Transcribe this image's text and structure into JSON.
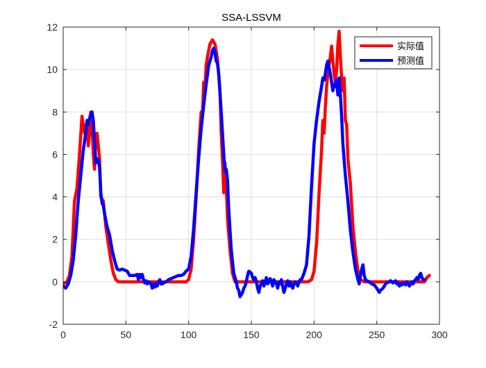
{
  "chart_data": {
    "type": "line",
    "title": "SSA-LSSVM",
    "xlabel": "",
    "ylabel": "",
    "xlim": [
      0,
      300
    ],
    "ylim": [
      -2,
      12
    ],
    "xticks": [
      0,
      50,
      100,
      150,
      200,
      250,
      300
    ],
    "yticks": [
      -2,
      0,
      2,
      4,
      6,
      8,
      10,
      12
    ],
    "grid": true,
    "legend_position": "top-right",
    "series": [
      {
        "name": "实际值",
        "color": "#ff0000",
        "points": [
          [
            0,
            -0.1
          ],
          [
            3,
            0
          ],
          [
            5,
            0.3
          ],
          [
            7,
            1.2
          ],
          [
            9,
            3.8
          ],
          [
            11,
            4.4
          ],
          [
            13,
            6.0
          ],
          [
            15,
            7.8
          ],
          [
            17,
            7.0
          ],
          [
            19,
            7.5
          ],
          [
            20,
            6.4
          ],
          [
            21,
            7.0
          ],
          [
            22,
            8.0
          ],
          [
            23,
            7.4
          ],
          [
            24,
            6.0
          ],
          [
            25,
            5.3
          ],
          [
            26,
            6.8
          ],
          [
            27,
            7.0
          ],
          [
            28,
            6.4
          ],
          [
            29,
            5.8
          ],
          [
            30,
            4.0
          ],
          [
            32,
            3.8
          ],
          [
            34,
            2.6
          ],
          [
            36,
            1.8
          ],
          [
            38,
            1.0
          ],
          [
            40,
            0.4
          ],
          [
            42,
            0.1
          ],
          [
            44,
            0
          ],
          [
            50,
            0
          ],
          [
            60,
            0
          ],
          [
            70,
            0
          ],
          [
            80,
            0
          ],
          [
            90,
            0
          ],
          [
            95,
            0
          ],
          [
            98,
            0
          ],
          [
            100,
            0.1
          ],
          [
            102,
            0.6
          ],
          [
            104,
            2.0
          ],
          [
            106,
            4.0
          ],
          [
            108,
            6.2
          ],
          [
            110,
            8.0
          ],
          [
            111,
            7.8
          ],
          [
            112,
            9.4
          ],
          [
            113,
            9.0
          ],
          [
            114,
            10.2
          ],
          [
            115,
            10.6
          ],
          [
            117,
            11.2
          ],
          [
            119,
            11.4
          ],
          [
            121,
            11.2
          ],
          [
            123,
            10.5
          ],
          [
            125,
            9.0
          ],
          [
            126,
            7.0
          ],
          [
            127,
            5.8
          ],
          [
            128,
            4.2
          ],
          [
            129,
            5.6
          ],
          [
            130,
            4.6
          ],
          [
            131,
            3.0
          ],
          [
            133,
            1.5
          ],
          [
            135,
            0.4
          ],
          [
            137,
            0
          ],
          [
            140,
            0
          ],
          [
            150,
            0
          ],
          [
            160,
            0
          ],
          [
            170,
            0
          ],
          [
            180,
            0
          ],
          [
            190,
            0
          ],
          [
            195,
            0
          ],
          [
            198,
            0.1
          ],
          [
            200,
            0.5
          ],
          [
            202,
            1.8
          ],
          [
            204,
            4.2
          ],
          [
            206,
            6.2
          ],
          [
            207,
            7.6
          ],
          [
            208,
            7.0
          ],
          [
            209,
            8.2
          ],
          [
            210,
            9.2
          ],
          [
            211,
            9.8
          ],
          [
            212,
            10.2
          ],
          [
            213,
            10.6
          ],
          [
            214,
            11.1
          ],
          [
            215,
            10.4
          ],
          [
            216,
            9.8
          ],
          [
            217,
            9.4
          ],
          [
            218,
            10.0
          ],
          [
            219,
            11.2
          ],
          [
            220,
            11.8
          ],
          [
            221,
            10.6
          ],
          [
            222,
            9.6
          ],
          [
            223,
            9.0
          ],
          [
            224,
            9.6
          ],
          [
            225,
            7.6
          ],
          [
            226,
            7.4
          ],
          [
            227,
            5.8
          ],
          [
            229,
            4.6
          ],
          [
            231,
            2.6
          ],
          [
            233,
            1.4
          ],
          [
            235,
            0.5
          ],
          [
            237,
            0.1
          ],
          [
            240,
            0
          ],
          [
            250,
            0
          ],
          [
            260,
            0
          ],
          [
            270,
            0
          ],
          [
            280,
            0
          ],
          [
            288,
            0
          ],
          [
            290,
            0.2
          ],
          [
            292,
            0.3
          ]
        ]
      },
      {
        "name": "预测值",
        "color": "#0000ff",
        "points": [
          [
            0,
            -0.2
          ],
          [
            2,
            -0.3
          ],
          [
            4,
            -0.1
          ],
          [
            6,
            0.3
          ],
          [
            8,
            1.0
          ],
          [
            10,
            2.2
          ],
          [
            12,
            3.8
          ],
          [
            14,
            5.0
          ],
          [
            16,
            6.2
          ],
          [
            18,
            7.0
          ],
          [
            19,
            7.6
          ],
          [
            20,
            7.4
          ],
          [
            21,
            7.7
          ],
          [
            22,
            7.9
          ],
          [
            23,
            8.0
          ],
          [
            24,
            7.6
          ],
          [
            25,
            6.6
          ],
          [
            26,
            5.6
          ],
          [
            27,
            5.8
          ],
          [
            28,
            5.7
          ],
          [
            29,
            5.4
          ],
          [
            30,
            4.2
          ],
          [
            31,
            3.7
          ],
          [
            32,
            3.6
          ],
          [
            33,
            3.2
          ],
          [
            35,
            2.6
          ],
          [
            37,
            2.2
          ],
          [
            39,
            1.5
          ],
          [
            41,
            1.0
          ],
          [
            43,
            0.6
          ],
          [
            45,
            0.55
          ],
          [
            47,
            0.6
          ],
          [
            49,
            0.55
          ],
          [
            51,
            0.5
          ],
          [
            53,
            0.3
          ],
          [
            55,
            0.3
          ],
          [
            57,
            0.3
          ],
          [
            59,
            0.35
          ],
          [
            60,
            0.1
          ],
          [
            61,
            0.35
          ],
          [
            62,
            0.2
          ],
          [
            63,
            0.35
          ],
          [
            64,
            0.1
          ],
          [
            65,
            -0.05
          ],
          [
            66,
            0.05
          ],
          [
            67,
            -0.1
          ],
          [
            68,
            0
          ],
          [
            70,
            -0.1
          ],
          [
            71,
            -0.3
          ],
          [
            72,
            -0.1
          ],
          [
            73,
            -0.25
          ],
          [
            74,
            -0.1
          ],
          [
            75,
            -0.2
          ],
          [
            76,
            0
          ],
          [
            77,
            0.1
          ],
          [
            78,
            -0.1
          ],
          [
            79,
            -0.1
          ],
          [
            80,
            -0.05
          ],
          [
            82,
            0
          ],
          [
            84,
            0.1
          ],
          [
            86,
            0.15
          ],
          [
            88,
            0.2
          ],
          [
            90,
            0.25
          ],
          [
            92,
            0.3
          ],
          [
            94,
            0.3
          ],
          [
            96,
            0.35
          ],
          [
            98,
            0.5
          ],
          [
            100,
            0.6
          ],
          [
            102,
            1.2
          ],
          [
            104,
            2.5
          ],
          [
            106,
            4.2
          ],
          [
            108,
            5.8
          ],
          [
            110,
            7.2
          ],
          [
            112,
            8.3
          ],
          [
            114,
            9.3
          ],
          [
            116,
            10.2
          ],
          [
            118,
            10.6
          ],
          [
            119,
            10.9
          ],
          [
            120,
            11.0
          ],
          [
            121,
            10.8
          ],
          [
            122,
            10.4
          ],
          [
            123,
            10.3
          ],
          [
            124,
            9.8
          ],
          [
            126,
            8.0
          ],
          [
            127,
            7.0
          ],
          [
            128,
            6.0
          ],
          [
            129,
            5.2
          ],
          [
            130,
            5.3
          ],
          [
            131,
            4.8
          ],
          [
            132,
            3.4
          ],
          [
            134,
            1.5
          ],
          [
            136,
            0.4
          ],
          [
            137,
            0.2
          ],
          [
            138,
            0.0
          ],
          [
            139,
            -0.3
          ],
          [
            140,
            -0.4
          ],
          [
            141,
            -0.7
          ],
          [
            142,
            -0.6
          ],
          [
            143,
            -0.5
          ],
          [
            144,
            -0.3
          ],
          [
            145,
            -0.2
          ],
          [
            146,
            0
          ],
          [
            147,
            0.3
          ],
          [
            148,
            0.5
          ],
          [
            149,
            0.45
          ],
          [
            150,
            0.4
          ],
          [
            151,
            0.2
          ],
          [
            152,
            0.1
          ],
          [
            153,
            0.2
          ],
          [
            154,
            0
          ],
          [
            155,
            -0.3
          ],
          [
            156,
            -0.5
          ],
          [
            157,
            -0.2
          ],
          [
            158,
            -0.1
          ],
          [
            159,
            0.05
          ],
          [
            160,
            -0.2
          ],
          [
            161,
            0
          ],
          [
            162,
            0.2
          ],
          [
            163,
            -0.1
          ],
          [
            164,
            0
          ],
          [
            165,
            0.15
          ],
          [
            166,
            0
          ],
          [
            167,
            -0.2
          ],
          [
            168,
            0.1
          ],
          [
            169,
            0
          ],
          [
            170,
            -0.1
          ],
          [
            171,
            -0.3
          ],
          [
            172,
            0
          ],
          [
            173,
            -0.1
          ],
          [
            174,
            0.1
          ],
          [
            175,
            -0.2
          ],
          [
            176,
            -0.5
          ],
          [
            177,
            -0.3
          ],
          [
            178,
            -0.1
          ],
          [
            179,
            0.05
          ],
          [
            180,
            -0.2
          ],
          [
            181,
            0
          ],
          [
            182,
            -0.2
          ],
          [
            183,
            -0.3
          ],
          [
            184,
            -0.1
          ],
          [
            185,
            0
          ],
          [
            186,
            -0.05
          ],
          [
            187,
            -0.2
          ],
          [
            188,
            0
          ],
          [
            189,
            0.1
          ],
          [
            190,
            0.1
          ],
          [
            192,
            0.4
          ],
          [
            194,
            0.8
          ],
          [
            196,
            2.2
          ],
          [
            198,
            4.5
          ],
          [
            200,
            6.5
          ],
          [
            202,
            7.6
          ],
          [
            204,
            8.5
          ],
          [
            206,
            9.2
          ],
          [
            207,
            9.6
          ],
          [
            208,
            9.5
          ],
          [
            209,
            9.8
          ],
          [
            210,
            10.2
          ],
          [
            211,
            10.4
          ],
          [
            212,
            10.1
          ],
          [
            213,
            9.8
          ],
          [
            214,
            9.4
          ],
          [
            215,
            9.0
          ],
          [
            216,
            9.3
          ],
          [
            217,
            9.2
          ],
          [
            218,
            9.5
          ],
          [
            219,
            8.8
          ],
          [
            220,
            9.6
          ],
          [
            221,
            8.8
          ],
          [
            222,
            7.8
          ],
          [
            223,
            6.5
          ],
          [
            225,
            5.0
          ],
          [
            227,
            3.8
          ],
          [
            229,
            2.4
          ],
          [
            231,
            1.4
          ],
          [
            233,
            0.6
          ],
          [
            235,
            0.1
          ],
          [
            236,
            -0.1
          ],
          [
            237,
            0.3
          ],
          [
            238,
            0.6
          ],
          [
            239,
            0.8
          ],
          [
            240,
            0.3
          ],
          [
            241,
            0.1
          ],
          [
            242,
            0.05
          ],
          [
            244,
            0.0
          ],
          [
            246,
            -0.1
          ],
          [
            248,
            -0.15
          ],
          [
            250,
            -0.3
          ],
          [
            251,
            -0.4
          ],
          [
            252,
            -0.5
          ],
          [
            253,
            -0.4
          ],
          [
            254,
            -0.35
          ],
          [
            255,
            -0.3
          ],
          [
            256,
            -0.2
          ],
          [
            257,
            -0.1
          ],
          [
            258,
            -0.05
          ],
          [
            260,
            0
          ],
          [
            261,
            0.05
          ],
          [
            262,
            0
          ],
          [
            263,
            -0.05
          ],
          [
            264,
            0
          ],
          [
            265,
            0.05
          ],
          [
            266,
            -0.1
          ],
          [
            267,
            -0.05
          ],
          [
            268,
            -0.2
          ],
          [
            269,
            -0.1
          ],
          [
            270,
            -0.15
          ],
          [
            271,
            -0.05
          ],
          [
            272,
            -0.1
          ],
          [
            273,
            -0.15
          ],
          [
            274,
            0
          ],
          [
            275,
            -0.1
          ],
          [
            276,
            -0.2
          ],
          [
            277,
            -0.1
          ],
          [
            278,
            0
          ],
          [
            279,
            -0.1
          ],
          [
            280,
            0.05
          ],
          [
            281,
            0.1
          ],
          [
            282,
            0.2
          ],
          [
            283,
            0.1
          ],
          [
            284,
            0.3
          ],
          [
            285,
            0.4
          ],
          [
            286,
            0.2
          ],
          [
            287,
            0.1
          ],
          [
            288,
            0.1
          ]
        ]
      }
    ]
  }
}
